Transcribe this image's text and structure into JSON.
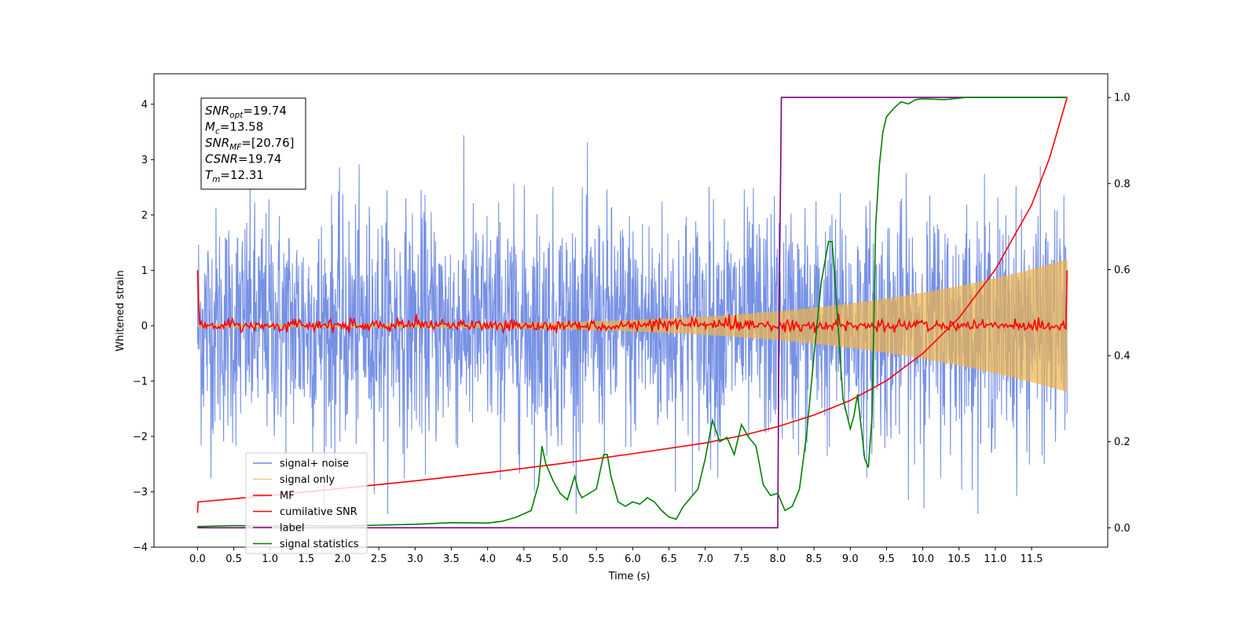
{
  "chart_data": {
    "type": "line",
    "xlabel": "Time (s)",
    "ylabel_left": "Whitened strain",
    "xlim": [
      -0.6,
      12.55
    ],
    "ylim_left": [
      -4,
      4.55
    ],
    "ylim_right": [
      -0.045,
      1.055
    ],
    "x_ticks": [
      0.0,
      0.5,
      1.0,
      1.5,
      2.0,
      2.5,
      3.0,
      3.5,
      4.0,
      4.5,
      5.0,
      5.5,
      6.0,
      6.5,
      7.0,
      7.5,
      8.0,
      8.5,
      9.0,
      9.5,
      10.0,
      10.5,
      11.0,
      11.5
    ],
    "x_tick_labels": [
      "0.0",
      "0.5",
      "1.0",
      "1.5",
      "2.0",
      "2.5",
      "3.0",
      "3.5",
      "4.0",
      "4.5",
      "5.0",
      "5.5",
      "6.0",
      "6.5",
      "7.0",
      "7.5",
      "8.0",
      "8.5",
      "9.0",
      "9.5",
      "10.0",
      "10.5",
      "11.0",
      "11.5"
    ],
    "y_left_ticks": [
      -4,
      -3,
      -2,
      -1,
      0,
      1,
      2,
      3,
      4
    ],
    "y_left_tick_labels": [
      "−4",
      "−3",
      "−2",
      "−1",
      "0",
      "1",
      "2",
      "3",
      "4"
    ],
    "y_right_ticks": [
      0.0,
      0.2,
      0.4,
      0.6,
      0.8,
      1.0
    ],
    "y_right_tick_labels": [
      "0.0",
      "0.2",
      "0.4",
      "0.6",
      "0.8",
      "1.0"
    ],
    "legend_position": "lower-left",
    "series": [
      {
        "name": "signal+ noise",
        "color": "#6b88e3",
        "axis": "left",
        "kind": "noise",
        "x_range": [
          0.0,
          11.99
        ],
        "std": 1.05,
        "approx_min": -3.4,
        "approx_max": 4.17
      },
      {
        "name": "signal only",
        "color": "#f0b44a",
        "axis": "left",
        "kind": "chirp",
        "x_range": [
          0.0,
          11.99
        ],
        "amplitude_start": 0.03,
        "amplitude_end": 1.2
      },
      {
        "name": "MF",
        "color": "#ff0000",
        "axis": "left",
        "kind": "mf",
        "x_range": [
          0.0,
          11.99
        ],
        "value_start": 1.0,
        "value_end": 1.0,
        "baseline": 0.0,
        "fluctuation": 0.05
      },
      {
        "name": "cumilative SNR",
        "color": "#ff0000",
        "axis": "right",
        "x": [
          0.0,
          0.01,
          1.0,
          2.0,
          3.0,
          4.0,
          5.0,
          6.0,
          7.0,
          7.5,
          8.0,
          8.5,
          9.0,
          9.5,
          10.0,
          10.5,
          11.0,
          11.5,
          11.75,
          11.99
        ],
        "y": [
          0.035,
          0.06,
          0.075,
          0.092,
          0.109,
          0.128,
          0.149,
          0.172,
          0.197,
          0.214,
          0.235,
          0.262,
          0.296,
          0.342,
          0.405,
          0.488,
          0.6,
          0.75,
          0.86,
          1.0
        ]
      },
      {
        "name": "label",
        "color": "#800080",
        "axis": "right",
        "x": [
          0.0,
          8.0,
          8.02,
          8.05,
          11.99
        ],
        "y": [
          0.0,
          0.0,
          0.5,
          1.0,
          1.0
        ]
      },
      {
        "name": "signal statistics",
        "color": "#008000",
        "axis": "right",
        "x": [
          0.0,
          0.5,
          1.0,
          1.5,
          2.0,
          2.5,
          3.0,
          3.5,
          4.0,
          4.2,
          4.4,
          4.6,
          4.7,
          4.75,
          4.8,
          4.9,
          5.0,
          5.1,
          5.2,
          5.25,
          5.3,
          5.4,
          5.5,
          5.6,
          5.65,
          5.7,
          5.8,
          5.9,
          6.0,
          6.1,
          6.2,
          6.3,
          6.4,
          6.5,
          6.6,
          6.7,
          6.8,
          6.9,
          7.0,
          7.1,
          7.2,
          7.3,
          7.4,
          7.5,
          7.6,
          7.7,
          7.8,
          7.9,
          8.0,
          8.1,
          8.2,
          8.3,
          8.4,
          8.5,
          8.6,
          8.7,
          8.75,
          8.8,
          8.9,
          9.0,
          9.05,
          9.1,
          9.2,
          9.25,
          9.3,
          9.35,
          9.4,
          9.45,
          9.5,
          9.6,
          9.7,
          9.8,
          9.9,
          10.0,
          10.3,
          10.6,
          11.0,
          11.5,
          11.99
        ],
        "y": [
          0.003,
          0.005,
          0.004,
          0.005,
          0.004,
          0.006,
          0.008,
          0.012,
          0.011,
          0.015,
          0.025,
          0.04,
          0.1,
          0.19,
          0.15,
          0.11,
          0.08,
          0.065,
          0.12,
          0.085,
          0.07,
          0.08,
          0.09,
          0.17,
          0.17,
          0.12,
          0.06,
          0.05,
          0.06,
          0.055,
          0.07,
          0.06,
          0.04,
          0.025,
          0.02,
          0.05,
          0.07,
          0.09,
          0.16,
          0.25,
          0.2,
          0.21,
          0.17,
          0.24,
          0.21,
          0.19,
          0.1,
          0.075,
          0.08,
          0.04,
          0.05,
          0.09,
          0.22,
          0.4,
          0.57,
          0.665,
          0.665,
          0.55,
          0.3,
          0.23,
          0.26,
          0.31,
          0.16,
          0.14,
          0.26,
          0.7,
          0.84,
          0.92,
          0.955,
          0.975,
          0.99,
          0.985,
          0.995,
          0.997,
          0.995,
          1.0,
          1.0,
          1.0,
          1.0
        ]
      }
    ]
  },
  "info_box": {
    "lines": [
      {
        "base": "SNR",
        "sub": "opt",
        "value": "=19.74"
      },
      {
        "base": "M",
        "sub": "c",
        "value": "=13.58"
      },
      {
        "base": "SNR",
        "sub": "MF",
        "value": "=[20.76]"
      },
      {
        "base": "CSNR",
        "sub": "",
        "value": "=19.74"
      },
      {
        "base": "T",
        "sub": "m",
        "value": "=12.31"
      }
    ]
  }
}
